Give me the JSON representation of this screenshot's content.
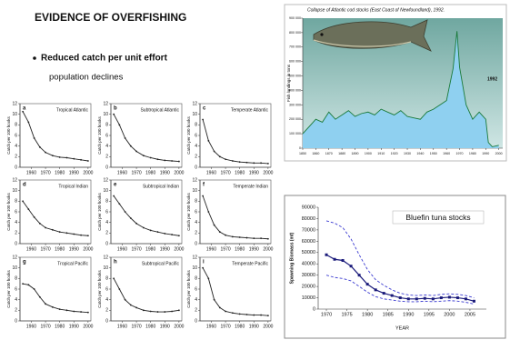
{
  "title": "EVIDENCE OF OVERFISHING",
  "bullet": "Reduced catch per unit effort",
  "subtext": "population declines",
  "chart_data": [
    {
      "type": "small-multiples",
      "ylabel": "Catch per 100 hooks",
      "x": [
        1954,
        1958,
        1962,
        1966,
        1970,
        1975,
        1980,
        1985,
        1990,
        1995,
        2000
      ],
      "xlim": [
        1952,
        2002
      ],
      "xticks": [
        1960,
        1970,
        1980,
        1990,
        2000
      ],
      "ylim": [
        0,
        12
      ],
      "yticks": [
        0,
        2,
        4,
        6,
        8,
        10,
        12
      ],
      "color": "#222222",
      "panels": [
        {
          "letter": "a",
          "title": "Tropical Atlantic",
          "values": [
            10.5,
            8.5,
            5.5,
            3.8,
            2.8,
            2.2,
            1.9,
            1.8,
            1.6,
            1.4,
            1.2
          ]
        },
        {
          "letter": "d",
          "title": "Tropical Indian",
          "values": [
            8,
            6.5,
            5,
            3.8,
            3,
            2.6,
            2.2,
            2,
            1.8,
            1.6,
            1.5
          ]
        },
        {
          "letter": "g",
          "title": "Tropical Pacific",
          "values": [
            7,
            6.8,
            6,
            4.5,
            3.2,
            2.6,
            2.2,
            2,
            1.8,
            1.7,
            1.6
          ]
        },
        {
          "letter": "b",
          "title": "Subtropical Atlantic",
          "values": [
            10,
            8,
            5.5,
            4,
            3,
            2.2,
            1.8,
            1.5,
            1.3,
            1.2,
            1.1
          ]
        },
        {
          "letter": "e",
          "title": "Subtropical Indian",
          "values": [
            9,
            7.5,
            6,
            4.8,
            3.8,
            3,
            2.5,
            2.2,
            1.9,
            1.7,
            1.5
          ]
        },
        {
          "letter": "h",
          "title": "Subtropical Pacific",
          "values": [
            8,
            6,
            4,
            3,
            2.5,
            2,
            1.8,
            1.7,
            1.7,
            1.8,
            2
          ]
        },
        {
          "letter": "c",
          "title": "Temperate Atlantic",
          "values": [
            9,
            5,
            3,
            2,
            1.5,
            1.2,
            1,
            0.9,
            0.8,
            0.8,
            0.7
          ]
        },
        {
          "letter": "f",
          "title": "Temperate Indian",
          "values": [
            9,
            6,
            3.5,
            2.2,
            1.6,
            1.3,
            1.2,
            1.1,
            1,
            1,
            0.9
          ]
        },
        {
          "letter": "i",
          "title": "Temperate Pacific",
          "values": [
            10,
            8,
            4,
            2.5,
            1.8,
            1.5,
            1.3,
            1.2,
            1.1,
            1.1,
            1
          ]
        }
      ]
    },
    {
      "type": "area",
      "title": "Collapse of Atlantic cod stocks (East Coast of Newfoundland), 1992.",
      "ylabel": "Fish landings in tons",
      "annotation": "1992",
      "color": "#1a7a3a",
      "x": [
        1850,
        1855,
        1860,
        1865,
        1870,
        1875,
        1880,
        1885,
        1890,
        1895,
        1900,
        1905,
        1910,
        1915,
        1920,
        1925,
        1930,
        1935,
        1940,
        1945,
        1950,
        1955,
        1960,
        1965,
        1968,
        1970,
        1975,
        1980,
        1985,
        1990,
        1992,
        1995,
        2000
      ],
      "values": [
        100000,
        150000,
        200000,
        180000,
        250000,
        200000,
        230000,
        260000,
        220000,
        240000,
        250000,
        230000,
        270000,
        250000,
        230000,
        260000,
        220000,
        210000,
        200000,
        250000,
        270000,
        300000,
        330000,
        550000,
        810000,
        560000,
        300000,
        200000,
        250000,
        200000,
        40000,
        10000,
        20000
      ],
      "xlim": [
        1850,
        2003
      ],
      "xticks": [
        1850,
        1860,
        1870,
        1880,
        1890,
        1900,
        1910,
        1920,
        1930,
        1940,
        1950,
        1960,
        1970,
        1980,
        1990,
        2000
      ],
      "ylim": [
        0,
        900000
      ],
      "yticks": [
        0,
        {
          "value": 100000,
          "label": "100 000"
        },
        {
          "value": 200000,
          "label": "200 000"
        },
        {
          "value": 300000,
          "label": "300 000"
        },
        {
          "value": 400000,
          "label": "400 000"
        },
        {
          "value": 500000,
          "label": "500 000"
        },
        {
          "value": 600000,
          "label": "600 000"
        },
        {
          "value": 700000,
          "label": "700 000"
        },
        {
          "value": 800000,
          "label": "800 000"
        },
        {
          "value": 900000,
          "label": "900 000"
        }
      ]
    },
    {
      "type": "line",
      "xlabel": "YEAR",
      "ylabel": "Spawning Biomass (mt)",
      "x": [
        1970,
        1972,
        1974,
        1976,
        1978,
        1980,
        1982,
        1984,
        1986,
        1988,
        1990,
        1992,
        1994,
        1996,
        1998,
        2000,
        2002,
        2004,
        2006
      ],
      "xlim": [
        1968,
        2009
      ],
      "xticks": [
        1970,
        1975,
        1980,
        1985,
        1990,
        1995,
        2000,
        2005
      ],
      "ylim": [
        0,
        90000
      ],
      "yticks": [
        0,
        10000,
        20000,
        30000,
        40000,
        50000,
        60000,
        70000,
        80000,
        90000
      ],
      "series": [
        {
          "name": "Bluefin tuna stocks",
          "color": "#1a1a7a",
          "values": [
            48000,
            44000,
            43000,
            38000,
            30000,
            22000,
            17000,
            14000,
            12000,
            10000,
            9000,
            9000,
            9500,
            9000,
            10000,
            10500,
            10000,
            9000,
            7000
          ]
        },
        {
          "color": "#3a3ad0",
          "values": [
            78000,
            76000,
            72000,
            62000,
            48000,
            35000,
            26000,
            21000,
            17000,
            14000,
            12500,
            12000,
            12500,
            12000,
            13000,
            13500,
            13000,
            12000,
            10000
          ]
        },
        {
          "color": "#3a3ad0",
          "values": [
            30000,
            28000,
            27000,
            25000,
            20000,
            15000,
            11000,
            9000,
            8000,
            7000,
            6500,
            6500,
            7000,
            6500,
            7000,
            7500,
            7000,
            6000,
            4500
          ]
        }
      ]
    }
  ]
}
